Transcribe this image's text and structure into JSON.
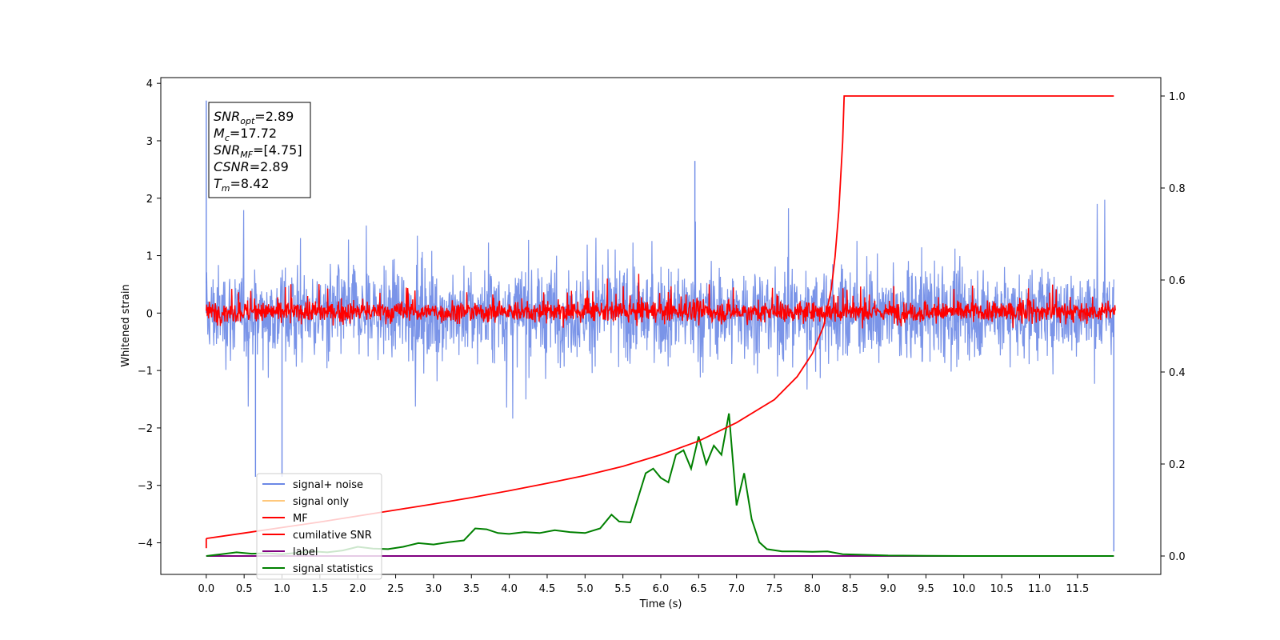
{
  "chart_data": {
    "type": "line",
    "xlabel": "Time (s)",
    "ylabel": "Whitened strain",
    "xlim": [
      -0.6,
      12.6
    ],
    "ylim": [
      -4.55,
      4.1
    ],
    "y2lim": [
      -0.04,
      1.04
    ],
    "xticks": [
      "0.0",
      "0.5",
      "1.0",
      "1.5",
      "2.0",
      "2.5",
      "3.0",
      "3.5",
      "4.0",
      "4.5",
      "5.0",
      "5.5",
      "6.0",
      "6.5",
      "7.0",
      "7.5",
      "8.0",
      "8.5",
      "9.0",
      "9.5",
      "10.0",
      "10.5",
      "11.0",
      "11.5"
    ],
    "yticks": [
      "4",
      "3",
      "2",
      "1",
      "0",
      "−1",
      "−2",
      "−3",
      "−4"
    ],
    "y2ticks": [
      "1.0",
      "0.8",
      "0.6",
      "0.4",
      "0.2",
      "0.0"
    ],
    "series": [
      {
        "name": "signal+ noise",
        "color": "#6b88e6",
        "axis": "left",
        "description_values": {
          "x_range": [
            0.0,
            11.98
          ],
          "approx_band": [
            -1.5,
            1.5
          ],
          "spikes": [
            [
              0.0,
              3.7
            ],
            [
              0.65,
              -2.85
            ],
            [
              1.0,
              -2.85
            ],
            [
              6.45,
              2.65
            ],
            [
              11.98,
              -4.15
            ]
          ]
        }
      },
      {
        "name": "signal only",
        "color": "#ffc87c",
        "axis": "left",
        "values_note": ""
      },
      {
        "name": "MF",
        "color": "#ff0000",
        "axis": "left",
        "description_values": {
          "x_range": [
            0.0,
            12.0
          ],
          "approx_band": [
            -0.35,
            0.6
          ]
        }
      },
      {
        "name": "cumilative SNR",
        "color": "#ff0000",
        "axis": "right",
        "x": [
          0.0,
          0.5,
          1.0,
          1.5,
          2.0,
          2.5,
          3.0,
          3.5,
          4.0,
          4.5,
          5.0,
          5.5,
          6.0,
          6.5,
          7.0,
          7.5,
          7.8,
          8.0,
          8.15,
          8.25,
          8.3,
          8.35,
          8.4,
          8.42,
          9.0,
          10.0,
          11.0,
          11.98
        ],
        "values": [
          0.038,
          0.05,
          0.062,
          0.074,
          0.087,
          0.1,
          0.113,
          0.127,
          0.142,
          0.158,
          0.175,
          0.195,
          0.22,
          0.25,
          0.29,
          0.34,
          0.39,
          0.44,
          0.5,
          0.58,
          0.65,
          0.75,
          0.9,
          1.0,
          1.0,
          1.0,
          1.0,
          1.0
        ]
      },
      {
        "name": "label",
        "color": "#800080",
        "axis": "right",
        "x": [
          0.0,
          11.98
        ],
        "values": [
          0.0,
          0.0
        ]
      },
      {
        "name": "signal statistics",
        "color": "#008000",
        "axis": "right",
        "x": [
          0.0,
          0.2,
          0.4,
          0.6,
          0.8,
          1.0,
          1.2,
          1.4,
          1.6,
          1.8,
          2.0,
          2.2,
          2.4,
          2.6,
          2.8,
          3.0,
          3.2,
          3.4,
          3.55,
          3.7,
          3.85,
          4.0,
          4.2,
          4.4,
          4.6,
          4.8,
          5.0,
          5.2,
          5.35,
          5.45,
          5.6,
          5.8,
          5.9,
          6.0,
          6.1,
          6.2,
          6.3,
          6.4,
          6.5,
          6.6,
          6.7,
          6.8,
          6.9,
          7.0,
          7.1,
          7.2,
          7.3,
          7.4,
          7.6,
          7.8,
          8.0,
          8.2,
          8.4,
          8.6,
          9.0,
          9.5,
          10.0,
          11.0,
          11.98
        ],
        "values": [
          0.0,
          0.004,
          0.008,
          0.005,
          0.006,
          0.004,
          0.007,
          0.01,
          0.008,
          0.012,
          0.02,
          0.016,
          0.015,
          0.02,
          0.028,
          0.025,
          0.03,
          0.034,
          0.06,
          0.058,
          0.05,
          0.048,
          0.052,
          0.05,
          0.056,
          0.052,
          0.05,
          0.06,
          0.09,
          0.075,
          0.073,
          0.18,
          0.19,
          0.17,
          0.16,
          0.22,
          0.23,
          0.19,
          0.26,
          0.2,
          0.24,
          0.22,
          0.31,
          0.11,
          0.18,
          0.08,
          0.03,
          0.015,
          0.01,
          0.01,
          0.009,
          0.01,
          0.004,
          0.003,
          0.001,
          0.0005,
          0.0,
          0.0,
          0.0
        ]
      }
    ],
    "legend": {
      "placement": "lower-left",
      "entries": [
        "signal+ noise",
        "signal only",
        "MF",
        "cumilative SNR",
        "label",
        "signal statistics"
      ]
    },
    "annotation_box": {
      "lines": [
        {
          "sym": "SNR",
          "sub": "opt",
          "val": "=2.89"
        },
        {
          "sym": "M",
          "sub": "c",
          "val": "=17.72"
        },
        {
          "sym": "SNR",
          "sub": "MF",
          "val": "=[4.75]"
        },
        {
          "sym": "CSNR",
          "sub": "",
          "val": "=2.89"
        },
        {
          "sym": "T",
          "sub": "m",
          "val": "=8.42"
        }
      ]
    },
    "grid": false
  }
}
